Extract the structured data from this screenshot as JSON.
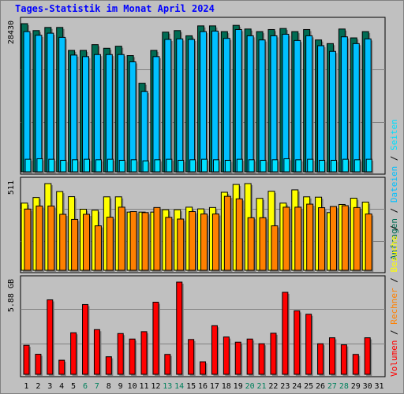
{
  "title": "Tages-Statistik im Monat April 2024",
  "colors": {
    "background": "#c0c0c0",
    "title": "#0000ff",
    "hits": "#006c54",
    "files": "#00c0ff",
    "pages": "#00e0ff",
    "visits": "#ffff00",
    "sites": "#ff8000",
    "kbytes": "#ff0000",
    "weekend_day_label": "#00805c",
    "grid": "#808080"
  },
  "chart_data": [
    {
      "type": "bar",
      "panel": "hits-files-pages",
      "y_label": "28430",
      "ylim": [
        0,
        28430
      ],
      "categories": [
        "1",
        "2",
        "3",
        "4",
        "5",
        "6",
        "7",
        "8",
        "9",
        "10",
        "11",
        "12",
        "13",
        "14",
        "15",
        "16",
        "17",
        "18",
        "19",
        "20",
        "21",
        "22",
        "23",
        "24",
        "25",
        "26",
        "27",
        "28",
        "29",
        "30"
      ],
      "series": [
        {
          "name": "Anfragen",
          "values": [
            28430,
            27100,
            27700,
            27700,
            23300,
            23300,
            24400,
            23700,
            24100,
            22300,
            17000,
            23300,
            26800,
            27100,
            26100,
            28000,
            28000,
            26900,
            28100,
            27400,
            26900,
            27300,
            27500,
            26900,
            27300,
            25300,
            24600,
            27400,
            25700,
            26900
          ]
        },
        {
          "name": "Dateien",
          "values": [
            26900,
            26200,
            26600,
            25800,
            22400,
            22100,
            22500,
            22500,
            22500,
            21100,
            15400,
            22100,
            25400,
            25500,
            25400,
            26900,
            27000,
            25600,
            27300,
            26100,
            25300,
            26100,
            26400,
            25200,
            26100,
            24200,
            23100,
            25900,
            24600,
            25500
          ]
        },
        {
          "name": "Seiten",
          "values": [
            2400,
            2500,
            2400,
            2200,
            2300,
            2400,
            2300,
            2400,
            2200,
            2300,
            2100,
            2300,
            2400,
            2200,
            2300,
            2400,
            2300,
            2200,
            2400,
            2300,
            2200,
            2300,
            2500,
            2300,
            2400,
            2200,
            2200,
            2400,
            2300,
            2400
          ]
        }
      ]
    },
    {
      "type": "bar",
      "panel": "visits-sites",
      "y_label": "511",
      "ylim": [
        0,
        511
      ],
      "categories": [
        "1",
        "2",
        "3",
        "4",
        "5",
        "6",
        "7",
        "8",
        "9",
        "10",
        "11",
        "12",
        "13",
        "14",
        "15",
        "16",
        "17",
        "18",
        "19",
        "20",
        "21",
        "22",
        "23",
        "24",
        "25",
        "26",
        "27",
        "28",
        "29",
        "30"
      ],
      "series": [
        {
          "name": "Besuche",
          "values": [
            396,
            429,
            511,
            464,
            434,
            360,
            354,
            433,
            433,
            343,
            343,
            343,
            357,
            357,
            372,
            362,
            370,
            460,
            506,
            511,
            424,
            466,
            396,
            474,
            433,
            431,
            340,
            388,
            425,
            402
          ]
        },
        {
          "name": "Rechner",
          "values": [
            361,
            379,
            379,
            330,
            300,
            330,
            262,
            313,
            372,
            346,
            340,
            370,
            312,
            302,
            346,
            332,
            332,
            436,
            421,
            310,
            310,
            262,
            372,
            372,
            390,
            369,
            376,
            381,
            370,
            332
          ]
        }
      ]
    },
    {
      "type": "bar",
      "panel": "volume",
      "y_label": "5.88 GB",
      "ylim": [
        0,
        5.88
      ],
      "categories": [
        "1",
        "2",
        "3",
        "4",
        "5",
        "6",
        "7",
        "8",
        "9",
        "10",
        "11",
        "12",
        "13",
        "14",
        "15",
        "16",
        "17",
        "18",
        "19",
        "20",
        "21",
        "22",
        "23",
        "24",
        "25",
        "26",
        "27",
        "28",
        "29",
        "30"
      ],
      "series": [
        {
          "name": "Volumen",
          "values": [
            1.85,
            1.28,
            4.75,
            0.9,
            2.65,
            4.45,
            2.85,
            1.12,
            2.6,
            2.25,
            2.72,
            4.6,
            1.27,
            5.88,
            2.22,
            0.8,
            3.1,
            2.38,
            2.05,
            2.25,
            1.95,
            2.62,
            5.23,
            4.05,
            3.83,
            1.95,
            2.33,
            1.88,
            1.27,
            2.33
          ]
        }
      ]
    }
  ],
  "x_labels": [
    "1",
    "2",
    "3",
    "4",
    "5",
    "6",
    "7",
    "8",
    "9",
    "10",
    "11",
    "12",
    "13",
    "14",
    "15",
    "16",
    "17",
    "18",
    "19",
    "20",
    "21",
    "22",
    "23",
    "24",
    "25",
    "26",
    "27",
    "28",
    "29",
    "30",
    "31"
  ],
  "weekend_days": [
    "6",
    "7",
    "13",
    "14",
    "20",
    "21",
    "27",
    "28"
  ],
  "legend_top": [
    "Anfragen",
    "/",
    "Dateien",
    "/",
    "Seiten"
  ],
  "legend_bottom": [
    "Volumen",
    "/",
    "Rechner",
    "/",
    "Besuche",
    "/"
  ]
}
